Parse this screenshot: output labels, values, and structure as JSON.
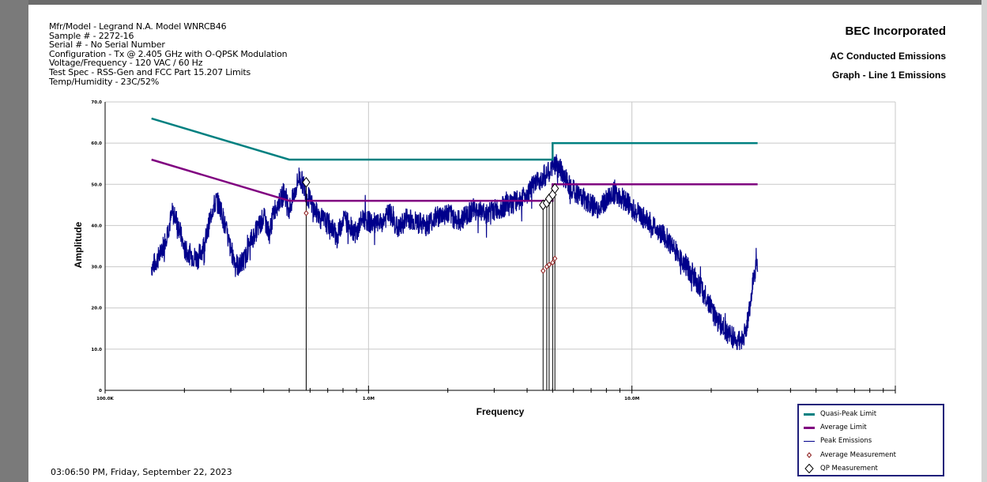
{
  "header": {
    "info_lines": [
      "Mfr/Model - Legrand N.A. Model WNRCB46",
      "Sample # - 2272-16",
      "Serial # - No Serial Number",
      "Configuration - Tx @ 2.405 GHz with O-QPSK Modulation",
      "Voltage/Frequency - 120 VAC / 60 Hz",
      "Test Spec - RSS-Gen and FCC Part 15.207 Limits",
      "Temp/Humidity - 23C/52%"
    ],
    "company": "BEC Incorporated",
    "title1": "AC Conducted Emissions",
    "title2": "Graph - Line 1 Emissions"
  },
  "footer": {
    "timestamp": "03:06:50 PM, Friday, September 22, 2023"
  },
  "legend": {
    "items": [
      {
        "label": "Quasi-Peak Limit",
        "color": "#008080",
        "icon": "thick-line"
      },
      {
        "label": "Average Limit",
        "color": "#800080",
        "icon": "thick-line"
      },
      {
        "label": "Peak Emissions",
        "color": "#00008b",
        "icon": "thin-line"
      },
      {
        "label": "Average Measurement",
        "color": "#8b1a1a",
        "icon": "small-diamond"
      },
      {
        "label": "QP Measurement",
        "color": "#000000",
        "icon": "open-diamond"
      }
    ]
  },
  "chart_data": {
    "type": "line",
    "xscale": "log",
    "xlim": [
      100000,
      100000000
    ],
    "ylim": [
      0,
      70
    ],
    "xlabel": "Frequency",
    "ylabel": "Amplitude",
    "x_tick_labels": [
      {
        "value": 100000,
        "label": "100.0K"
      },
      {
        "value": 1000000,
        "label": "1.0M"
      },
      {
        "value": 10000000,
        "label": "10.0M"
      }
    ],
    "y_tick_labels": [
      "0",
      "10.0",
      "20.0",
      "30.0",
      "40.0",
      "50.0",
      "60.0",
      "70.0"
    ],
    "grid": true,
    "colors": {
      "qp_limit": "#008080",
      "avg_limit": "#800080",
      "peak": "#00008b",
      "avg_meas": "#8b1a1a",
      "qp_meas": "#000000"
    },
    "series": [
      {
        "name": "Quasi-Peak Limit",
        "x": [
          150000,
          500000,
          5000000,
          5000000,
          30000000
        ],
        "y": [
          66,
          56,
          56,
          60,
          60
        ]
      },
      {
        "name": "Average Limit",
        "x": [
          150000,
          500000,
          5000000,
          5000000,
          30000000
        ],
        "y": [
          56,
          46,
          46,
          50,
          50
        ]
      },
      {
        "name": "Peak Emissions",
        "x": [
          150000,
          155000,
          162000,
          168000,
          175000,
          180000,
          185000,
          190000,
          195000,
          200000,
          210000,
          225000,
          240000,
          255000,
          265000,
          275000,
          285000,
          300000,
          320000,
          340000,
          355000,
          370000,
          385000,
          400000,
          420000,
          440000,
          460000,
          480000,
          500000,
          520000,
          545000,
          565000,
          580000,
          600000,
          620000,
          650000,
          680000,
          720000,
          760000,
          800000,
          850000,
          900000,
          950000,
          1000000,
          1100000,
          1200000,
          1300000,
          1400000,
          1500000,
          1650000,
          1800000,
          2000000,
          2200000,
          2500000,
          2800000,
          3100000,
          3400000,
          3700000,
          4000000,
          4300000,
          4600000,
          4900000,
          5100000,
          5300000,
          5500000,
          5800000,
          6100000,
          6500000,
          7000000,
          7500000,
          8000000,
          8500000,
          9000000,
          9500000,
          10000000,
          11000000,
          12000000,
          13500000,
          15000000,
          17000000,
          19000000,
          21000000,
          23000000,
          25000000,
          26000000,
          27000000,
          28000000,
          29000000,
          30000000
        ],
        "y": [
          30,
          31,
          33,
          36,
          40,
          43,
          42,
          40,
          37,
          34,
          33,
          32,
          36,
          44,
          46,
          44,
          40,
          34,
          30,
          32,
          36,
          38,
          40,
          42,
          38,
          44,
          46,
          48,
          44,
          47,
          52,
          50,
          48,
          46,
          44,
          42,
          41,
          40,
          37,
          42,
          40,
          38,
          42,
          41,
          40,
          43,
          39,
          42,
          41,
          40,
          42,
          43,
          41,
          44,
          43,
          44,
          45,
          46,
          48,
          50,
          52,
          53,
          55,
          54,
          52,
          50,
          48,
          47,
          45,
          44,
          46,
          48,
          47,
          46,
          44,
          42,
          40,
          37,
          33,
          28,
          23,
          17,
          14,
          12,
          12,
          14,
          20,
          28,
          30
        ]
      },
      {
        "name": "Average Measurement",
        "x": [
          580000,
          4600000,
          4750000,
          4850000,
          5000000,
          5100000
        ],
        "y": [
          43,
          29,
          30,
          30.5,
          31,
          32
        ]
      },
      {
        "name": "QP Measurement",
        "x": [
          580000,
          4600000,
          4750000,
          4850000,
          5000000,
          5100000
        ],
        "y": [
          50.5,
          45,
          45.5,
          46.5,
          47.5,
          49
        ]
      }
    ]
  }
}
